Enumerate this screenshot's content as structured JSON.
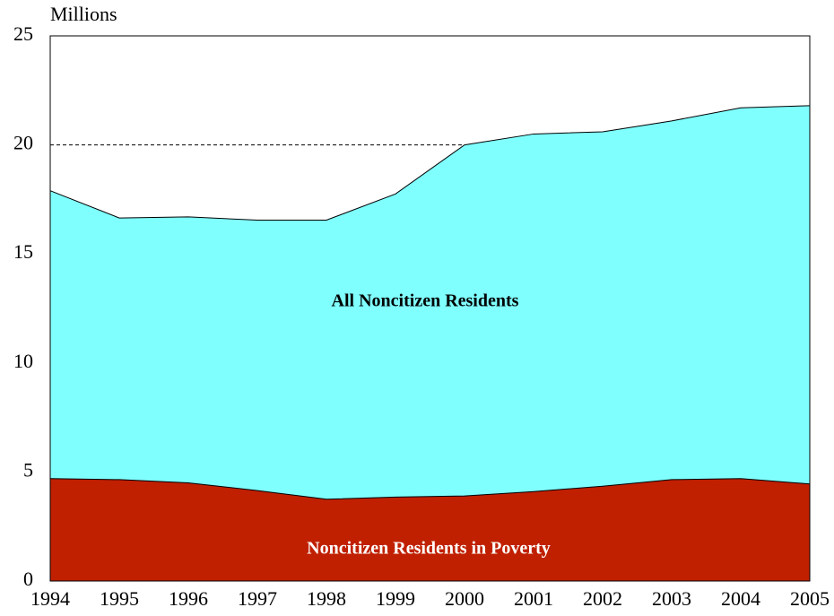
{
  "chart_data": {
    "type": "area",
    "y_label": "Millions",
    "categories": [
      "1994",
      "1995",
      "1996",
      "1997",
      "1998",
      "1999",
      "2000",
      "2001",
      "2002",
      "2003",
      "2004",
      "2005"
    ],
    "series": [
      {
        "name": "All Noncitizen Residents",
        "color": "#80ffff",
        "label_color": "#000000",
        "values": [
          17.9,
          16.65,
          16.7,
          16.55,
          16.55,
          17.75,
          20.0,
          20.5,
          20.6,
          21.1,
          21.7,
          21.8
        ]
      },
      {
        "name": "Noncitizen Residents in Poverty",
        "color": "#c02000",
        "label_color": "#ffffff",
        "values": [
          4.7,
          4.65,
          4.5,
          4.15,
          3.75,
          3.85,
          3.9,
          4.1,
          4.35,
          4.65,
          4.7,
          4.45
        ]
      }
    ],
    "ylim": [
      0,
      25
    ],
    "yticks": [
      0,
      5,
      10,
      15,
      20,
      25
    ],
    "grid": true
  }
}
